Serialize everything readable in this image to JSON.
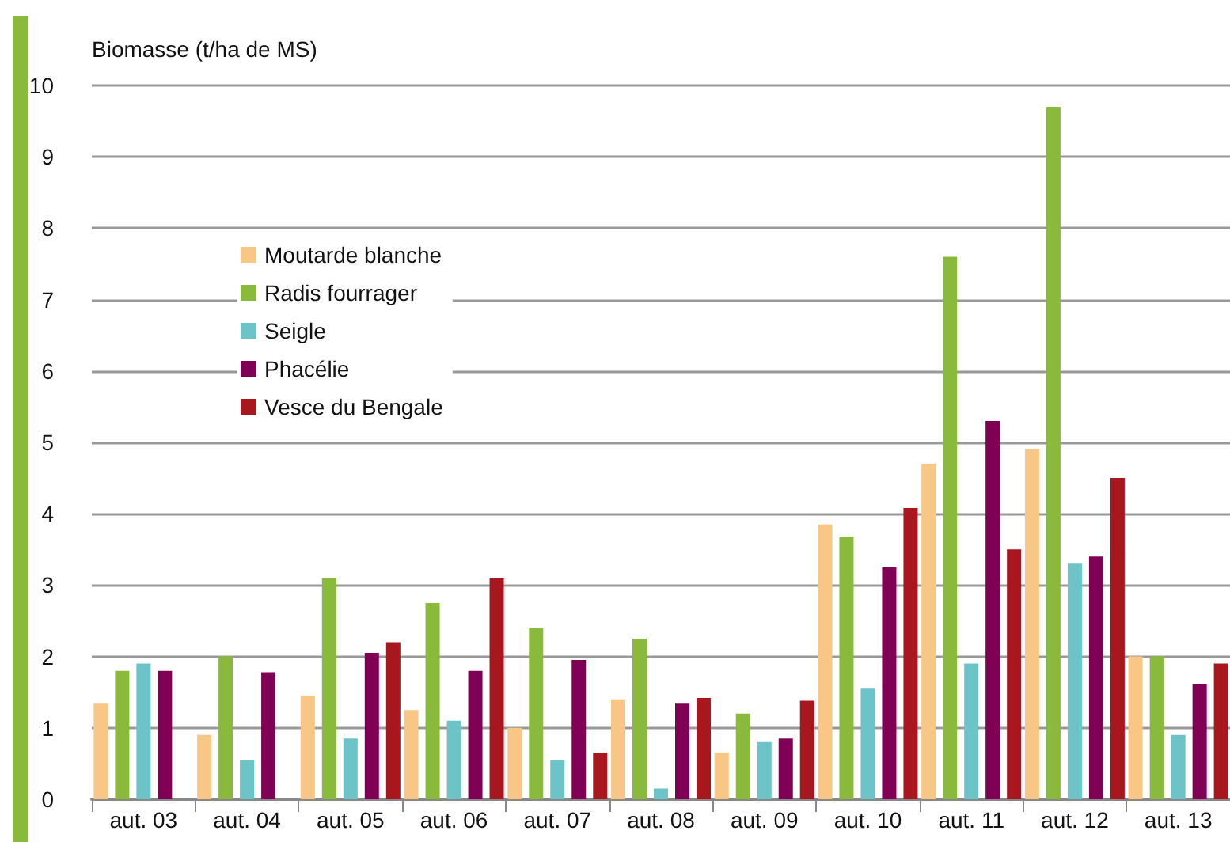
{
  "chart_data": {
    "type": "bar",
    "ylabel": "Biomasse (t/ha de MS)",
    "categories": [
      "aut. 03",
      "aut. 04",
      "aut. 05",
      "aut. 06",
      "aut. 07",
      "aut. 08",
      "aut. 09",
      "aut. 10",
      "aut. 11",
      "aut. 12",
      "aut. 13"
    ],
    "series": [
      {
        "name": "Moutarde blanche",
        "color": "#f9c785",
        "values": [
          1.35,
          0.9,
          1.45,
          1.25,
          1.0,
          1.4,
          0.65,
          3.85,
          4.7,
          4.9,
          2.0
        ]
      },
      {
        "name": "Radis fourrager",
        "color": "#8aba3c",
        "values": [
          1.8,
          2.0,
          3.1,
          2.75,
          2.4,
          2.25,
          1.2,
          3.68,
          7.6,
          9.7,
          2.0
        ]
      },
      {
        "name": "Seigle",
        "color": "#6cc3c8",
        "values": [
          1.9,
          0.55,
          0.85,
          1.1,
          0.55,
          0.15,
          0.8,
          1.55,
          1.9,
          3.3,
          0.9
        ]
      },
      {
        "name": "Phacélie",
        "color": "#7f0055",
        "values": [
          1.8,
          1.78,
          2.05,
          1.8,
          1.95,
          1.35,
          0.85,
          3.25,
          5.3,
          3.4,
          1.62
        ]
      },
      {
        "name": "Vesce du Bengale",
        "color": "#a8161e",
        "values": [
          null,
          null,
          2.2,
          3.1,
          0.65,
          1.42,
          1.38,
          4.08,
          3.5,
          4.5,
          1.9
        ]
      }
    ],
    "ylim": [
      0,
      10
    ],
    "yticks": [
      0,
      1,
      2,
      3,
      4,
      5,
      6,
      7,
      8,
      9,
      10
    ],
    "grid": "y",
    "legend": "top left"
  }
}
